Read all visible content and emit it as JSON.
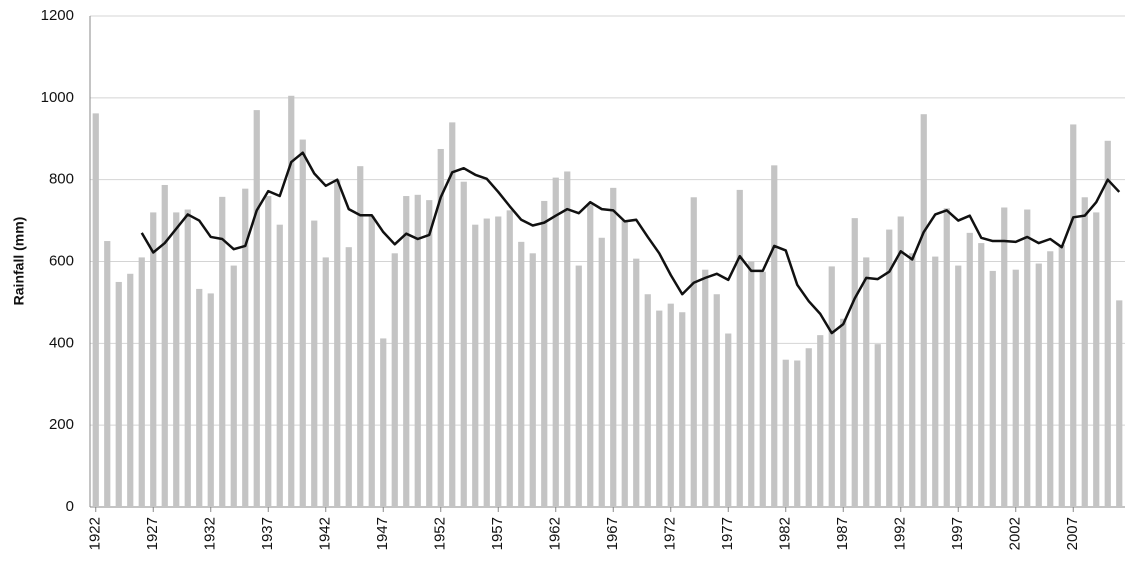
{
  "chart_data": {
    "type": "bar",
    "y_label": "Rainfall (mm)",
    "categories": [
      "1922",
      null,
      null,
      null,
      null,
      "1927",
      null,
      null,
      null,
      null,
      "1932",
      null,
      null,
      null,
      null,
      "1937",
      null,
      null,
      null,
      null,
      "1942",
      null,
      null,
      null,
      null,
      "1947",
      null,
      null,
      null,
      null,
      "1952",
      null,
      null,
      null,
      null,
      "1957",
      null,
      null,
      null,
      null,
      "1962",
      null,
      null,
      null,
      null,
      "1967",
      null,
      null,
      null,
      null,
      "1972",
      null,
      null,
      null,
      null,
      "1977",
      null,
      null,
      null,
      null,
      "1982",
      null,
      null,
      null,
      null,
      "1987",
      null,
      null,
      null,
      null,
      "1992",
      null,
      null,
      null,
      null,
      "1997",
      null,
      null,
      null,
      null,
      "2002",
      null,
      null,
      null,
      null,
      "2007",
      null,
      null,
      null,
      null
    ],
    "series": [
      {
        "type": "bar",
        "color": "#c4c4c4",
        "values": [
          962,
          650,
          550,
          570,
          610,
          720,
          787,
          720,
          727,
          533,
          522,
          758,
          590,
          778,
          970,
          760,
          690,
          1005,
          898,
          700,
          610,
          800,
          635,
          833,
          710,
          412,
          620,
          760,
          763,
          750,
          875,
          940,
          795,
          690,
          705,
          710,
          725,
          648,
          620,
          748,
          805,
          820,
          590,
          740,
          658,
          780,
          700,
          607,
          520,
          480,
          497,
          476,
          757,
          580,
          520,
          424,
          775,
          600,
          575,
          835,
          360,
          358,
          388,
          420,
          588,
          460,
          706,
          610,
          398,
          678,
          710,
          620,
          960,
          612,
          730,
          590,
          670,
          645,
          577,
          732,
          580,
          727,
          595,
          625,
          640,
          935,
          757,
          720,
          895,
          505
        ]
      },
      {
        "type": "line",
        "color": "#111111",
        "values": [
          null,
          null,
          null,
          null,
          670,
          622,
          645,
          680,
          715,
          700,
          660,
          655,
          630,
          638,
          725,
          772,
          760,
          843,
          866,
          815,
          785,
          800,
          728,
          713,
          713,
          672,
          642,
          668,
          655,
          665,
          757,
          818,
          828,
          812,
          802,
          770,
          735,
          702,
          688,
          695,
          712,
          728,
          718,
          745,
          728,
          725,
          698,
          702,
          660,
          620,
          567,
          520,
          548,
          560,
          570,
          555,
          613,
          577,
          577,
          638,
          627,
          543,
          503,
          472,
          425,
          447,
          510,
          560,
          557,
          575,
          625,
          605,
          672,
          715,
          725,
          700,
          712,
          658,
          650,
          650,
          648,
          660,
          645,
          655,
          635,
          708,
          712,
          745,
          800,
          770
        ]
      }
    ],
    "ylim": [
      0,
      1200
    ],
    "yticks": [
      0,
      200,
      400,
      600,
      800,
      1000,
      1200
    ],
    "grid": true
  }
}
